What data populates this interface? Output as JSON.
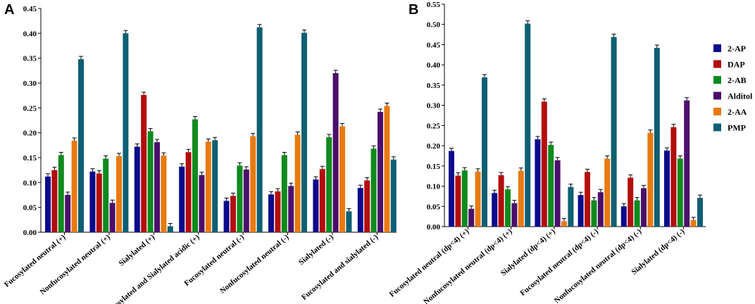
{
  "chart_data": [
    {
      "type": "bar",
      "title": "",
      "panel_label": "A",
      "xlabel": "",
      "ylabel": "",
      "ylim": [
        0,
        0.45
      ],
      "yticks": [
        "0.00",
        "0.05",
        "0.10",
        "0.15",
        "0.20",
        "0.25",
        "0.30",
        "0.35",
        "0.40",
        "0.45"
      ],
      "categories": [
        "Fucosylated neutral (+)",
        "Nonfucosylated neutral (+)",
        "Sialylated (+)",
        "Fucosylated and Sialylated acidic (+)",
        "Fucosylated neutral (-)",
        "Nonfucosylated neutral (-)",
        "Sialylated (-)",
        "Fucosylated and sialylated (-)"
      ],
      "series": [
        {
          "name": "2-AP",
          "color": "#0a0a8c",
          "values": [
            0.112,
            0.122,
            0.172,
            0.132,
            0.063,
            0.076,
            0.106,
            0.089
          ]
        },
        {
          "name": "DAP",
          "color": "#b30d0d",
          "values": [
            0.125,
            0.118,
            0.276,
            0.161,
            0.073,
            0.082,
            0.127,
            0.104
          ]
        },
        {
          "name": "2-AB",
          "color": "#0e8a1e",
          "values": [
            0.155,
            0.148,
            0.203,
            0.227,
            0.134,
            0.155,
            0.191,
            0.168
          ]
        },
        {
          "name": "Alditol",
          "color": "#4b0f6b",
          "values": [
            0.075,
            0.059,
            0.181,
            0.115,
            0.126,
            0.093,
            0.32,
            0.242
          ]
        },
        {
          "name": "2-AA",
          "color": "#e87a0f",
          "values": [
            0.184,
            0.153,
            0.154,
            0.182,
            0.193,
            0.196,
            0.213,
            0.254
          ]
        },
        {
          "name": "PMP",
          "color": "#0e5f73",
          "values": [
            0.348,
            0.4,
            0.012,
            0.185,
            0.412,
            0.401,
            0.042,
            0.146
          ]
        }
      ]
    },
    {
      "type": "bar",
      "title": "",
      "panel_label": "B",
      "xlabel": "",
      "ylabel": "",
      "ylim": [
        0,
        0.55
      ],
      "yticks": [
        "0.00",
        "0.05",
        "0.10",
        "0.15",
        "0.20",
        "0.25",
        "0.30",
        "0.35",
        "0.40",
        "0.45",
        "0.50",
        "0.55"
      ],
      "categories": [
        "Fucosylated neutral (dp<4) (+)",
        "Nonfucosylated neutral (dp<4) (+)",
        "Sialylated (dp<4) (+)",
        "Fucosylated neutral (dp<4) (-)",
        "Nonfucosylated neutral (dp<4) (-)",
        "Sialylated (dp<4) (-)"
      ],
      "series": [
        {
          "name": "2-AP",
          "color": "#0a0a8c",
          "values": [
            0.187,
            0.083,
            0.216,
            0.078,
            0.05,
            0.188
          ]
        },
        {
          "name": "DAP",
          "color": "#b30d0d",
          "values": [
            0.126,
            0.127,
            0.309,
            0.135,
            0.121,
            0.246
          ]
        },
        {
          "name": "2-AB",
          "color": "#0e8a1e",
          "values": [
            0.139,
            0.092,
            0.202,
            0.065,
            0.065,
            0.168
          ]
        },
        {
          "name": "Alditol",
          "color": "#4b0f6b",
          "values": [
            0.044,
            0.058,
            0.164,
            0.085,
            0.095,
            0.312
          ]
        },
        {
          "name": "2-AA",
          "color": "#e87a0f",
          "values": [
            0.136,
            0.138,
            0.013,
            0.168,
            0.232,
            0.016
          ]
        },
        {
          "name": "PMP",
          "color": "#0e5f73",
          "values": [
            0.369,
            0.502,
            0.098,
            0.469,
            0.442,
            0.071
          ]
        }
      ]
    }
  ],
  "legend": {
    "items": [
      {
        "label": "2-AP",
        "color": "#0a0a8c"
      },
      {
        "label": "DAP",
        "color": "#b30d0d"
      },
      {
        "label": "2-AB",
        "color": "#0e8a1e"
      },
      {
        "label": "Alditol",
        "color": "#4b0f6b"
      },
      {
        "label": "2-AA",
        "color": "#e87a0f"
      },
      {
        "label": "PMP",
        "color": "#0e5f73"
      }
    ]
  }
}
